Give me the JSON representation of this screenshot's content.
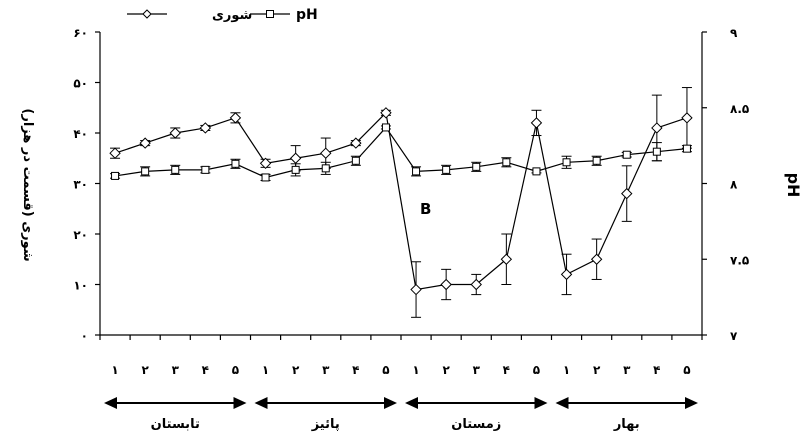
{
  "chart_data": {
    "type": "line",
    "legend": {
      "position": "top-left"
    },
    "x": {
      "categories": [
        "۱",
        "۲",
        "۳",
        "۴",
        "۵",
        "۱",
        "۲",
        "۳",
        "۴",
        "۵",
        "۱",
        "۲",
        "۳",
        "۴",
        "۵",
        "۱",
        "۲",
        "۳",
        "۴",
        "۵"
      ],
      "seasons": [
        "تابستان",
        "پائیز",
        "زمستان",
        "بهار"
      ]
    },
    "y_left": {
      "label": "شوری (قسمت در هزار)",
      "ylim": [
        0,
        60
      ],
      "tick_values": [
        0,
        10,
        20,
        30,
        40,
        50,
        60
      ],
      "tick_labels": [
        "۰",
        "۱۰",
        "۲۰",
        "۳۰",
        "۴۰",
        "۵۰",
        "۶۰"
      ]
    },
    "y_right": {
      "label": "pH",
      "ylim": [
        7,
        9
      ],
      "tick_values": [
        7,
        7.5,
        8,
        8.5,
        9
      ],
      "tick_labels": [
        "۷",
        "۷.۵",
        "۸",
        "۸.۵",
        "۹"
      ]
    },
    "series": [
      {
        "name": "شوری",
        "marker": "diamond",
        "axis": "left",
        "values": [
          36,
          38,
          40,
          41,
          43,
          34,
          35,
          36,
          38,
          44,
          9,
          10,
          10,
          15,
          42,
          12,
          15,
          28,
          41,
          43
        ],
        "errors": [
          1,
          0.5,
          1,
          0.5,
          1,
          0.8,
          2.5,
          3,
          0.5,
          0.5,
          5.5,
          3,
          2,
          5,
          2.5,
          4,
          4,
          5.5,
          6.5,
          6
        ]
      },
      {
        "name": "pH",
        "marker": "square",
        "axis": "right",
        "values": [
          8.05,
          8.08,
          8.09,
          8.09,
          8.13,
          8.04,
          8.09,
          8.1,
          8.15,
          8.37,
          8.08,
          8.09,
          8.11,
          8.14,
          8.08,
          8.14,
          8.15,
          8.19,
          8.21,
          8.23
        ],
        "errors": [
          0.015,
          0.03,
          0.03,
          0.02,
          0.03,
          0.02,
          0.04,
          0.04,
          0.03,
          0.01,
          0.03,
          0.03,
          0.03,
          0.03,
          0.01,
          0.04,
          0.03,
          0.015,
          0.06,
          0.02
        ]
      }
    ],
    "annotations": [
      "B"
    ]
  }
}
